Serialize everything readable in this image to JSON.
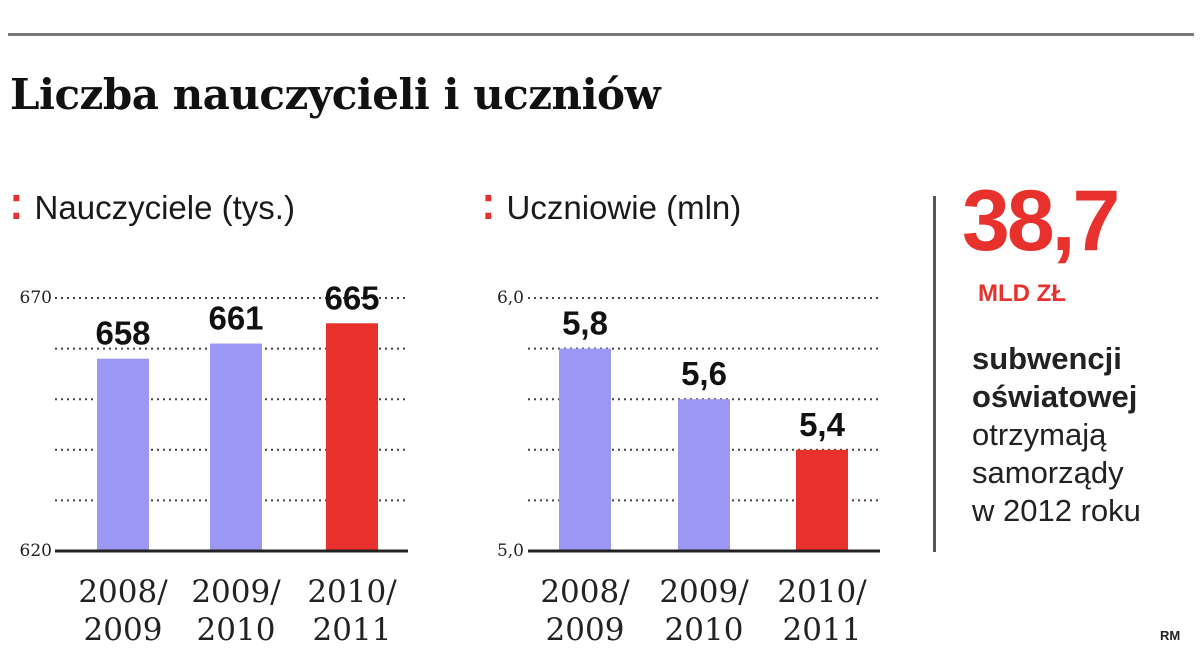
{
  "title": "Liczba nauczycieli i uczniów",
  "panels": {
    "teachers_label": "Nauczyciele (tys.)",
    "students_label": "Uczniowie (mln)",
    "marker": "⁚"
  },
  "chart_data": [
    {
      "type": "bar",
      "title": "Nauczyciele (tys.)",
      "categories": [
        "2008/ 2009",
        "2009/ 2010",
        "2010/ 2011"
      ],
      "values": [
        658,
        661,
        665
      ],
      "value_labels": [
        "658",
        "661",
        "665"
      ],
      "ylim": [
        620,
        670
      ],
      "ytick_labels": [
        "620",
        "670"
      ],
      "grid": true,
      "colors": [
        "#9a98f2",
        "#9a98f2",
        "#e8312c"
      ]
    },
    {
      "type": "bar",
      "title": "Uczniowie (mln)",
      "categories": [
        "2008/ 2009",
        "2009/ 2010",
        "2010/ 2011"
      ],
      "values": [
        5.8,
        5.6,
        5.4
      ],
      "value_labels": [
        "5,8",
        "5,6",
        "5,4"
      ],
      "ylim": [
        5.0,
        6.0
      ],
      "ytick_labels": [
        "5,0",
        "6,0"
      ],
      "grid": true,
      "colors": [
        "#9a98f2",
        "#9a98f2",
        "#e8312c"
      ]
    }
  ],
  "highlight": {
    "value": "38,7",
    "unit": "MLD ZŁ",
    "bold_lines": [
      "subwencji",
      "oświatowej"
    ],
    "lines": [
      "otrzymają",
      "samorządy",
      "w 2012 roku"
    ]
  },
  "credit": "RM",
  "colors": {
    "accent": "#e8312c",
    "bar": "#9a98f2"
  }
}
